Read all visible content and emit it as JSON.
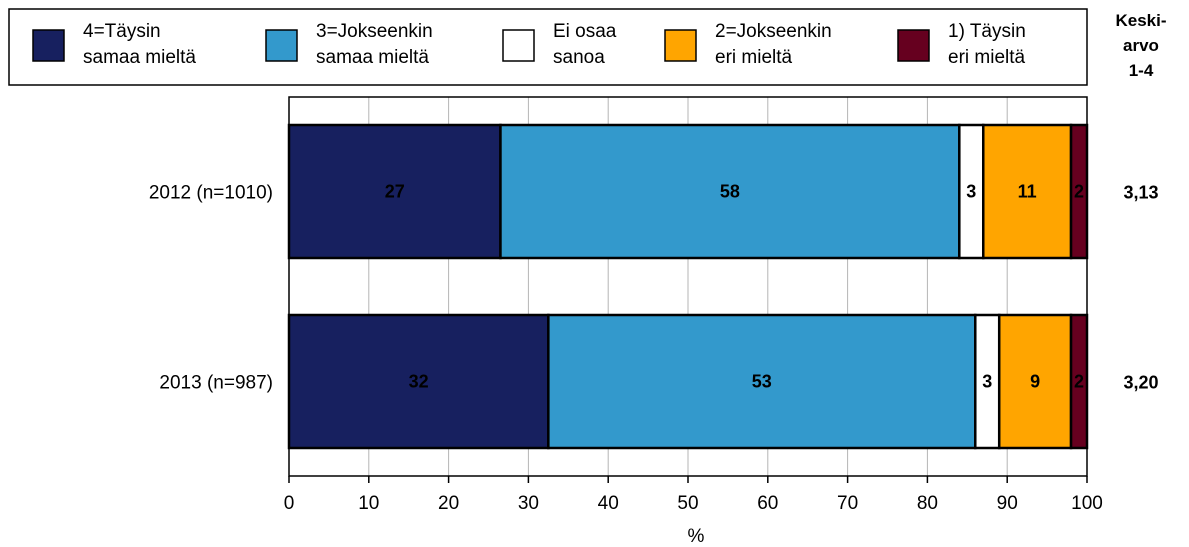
{
  "chart_data": {
    "type": "bar",
    "orientation": "horizontal",
    "stacked": true,
    "categories": [
      "2012 (n=1010)",
      "2013 (n=987)"
    ],
    "series": [
      {
        "name": "4=Täysin samaa mieltä",
        "legend_lines": [
          "4=Täysin",
          "samaa mieltä"
        ],
        "color": "#17205f",
        "label_color": "#ffffff",
        "values": [
          27,
          32
        ],
        "labels": [
          "27",
          "32"
        ]
      },
      {
        "name": "3=Jokseenkin samaa mieltä",
        "legend_lines": [
          "3=Jokseenkin",
          "samaa mieltä"
        ],
        "color": "#3399cc",
        "label_color": "#000000",
        "values": [
          58,
          53
        ],
        "labels": [
          "58",
          "53"
        ]
      },
      {
        "name": "Ei osaa sanoa",
        "legend_lines": [
          "Ei osaa",
          "sanoa"
        ],
        "color": "#ffffff",
        "label_color": "#000000",
        "values": [
          3,
          3
        ],
        "labels": [
          "3",
          "3"
        ]
      },
      {
        "name": "2=Jokseenkin eri mieltä",
        "legend_lines": [
          "2=Jokseenkin",
          "eri mieltä"
        ],
        "color": "#ffa500",
        "label_color": "#000000",
        "values": [
          11,
          9
        ],
        "labels": [
          "11",
          "9"
        ]
      },
      {
        "name": "1) Täysin eri mieltä",
        "legend_lines": [
          "1) Täysin",
          "eri mieltä"
        ],
        "color": "#66001f",
        "label_color": "#ffffff",
        "values": [
          2,
          2
        ],
        "labels": [
          "2",
          "2"
        ]
      }
    ],
    "bar_extents": [
      [
        [
          0,
          26.5
        ],
        [
          26.5,
          84
        ],
        [
          84,
          87
        ],
        [
          87,
          98
        ],
        [
          98,
          100
        ]
      ],
      [
        [
          0,
          32.5
        ],
        [
          32.5,
          86
        ],
        [
          86,
          89
        ],
        [
          89,
          98
        ],
        [
          98,
          100
        ]
      ]
    ],
    "mean_header_lines": [
      "Keski-",
      "arvo",
      "1-4"
    ],
    "means": [
      "3,13",
      "3,20"
    ],
    "xlabel": "%",
    "xlim": [
      0,
      100
    ],
    "xticks": [
      "0",
      "10",
      "20",
      "30",
      "40",
      "50",
      "60",
      "70",
      "80",
      "90",
      "100"
    ],
    "grid": "vertical",
    "legend_position": "top"
  }
}
